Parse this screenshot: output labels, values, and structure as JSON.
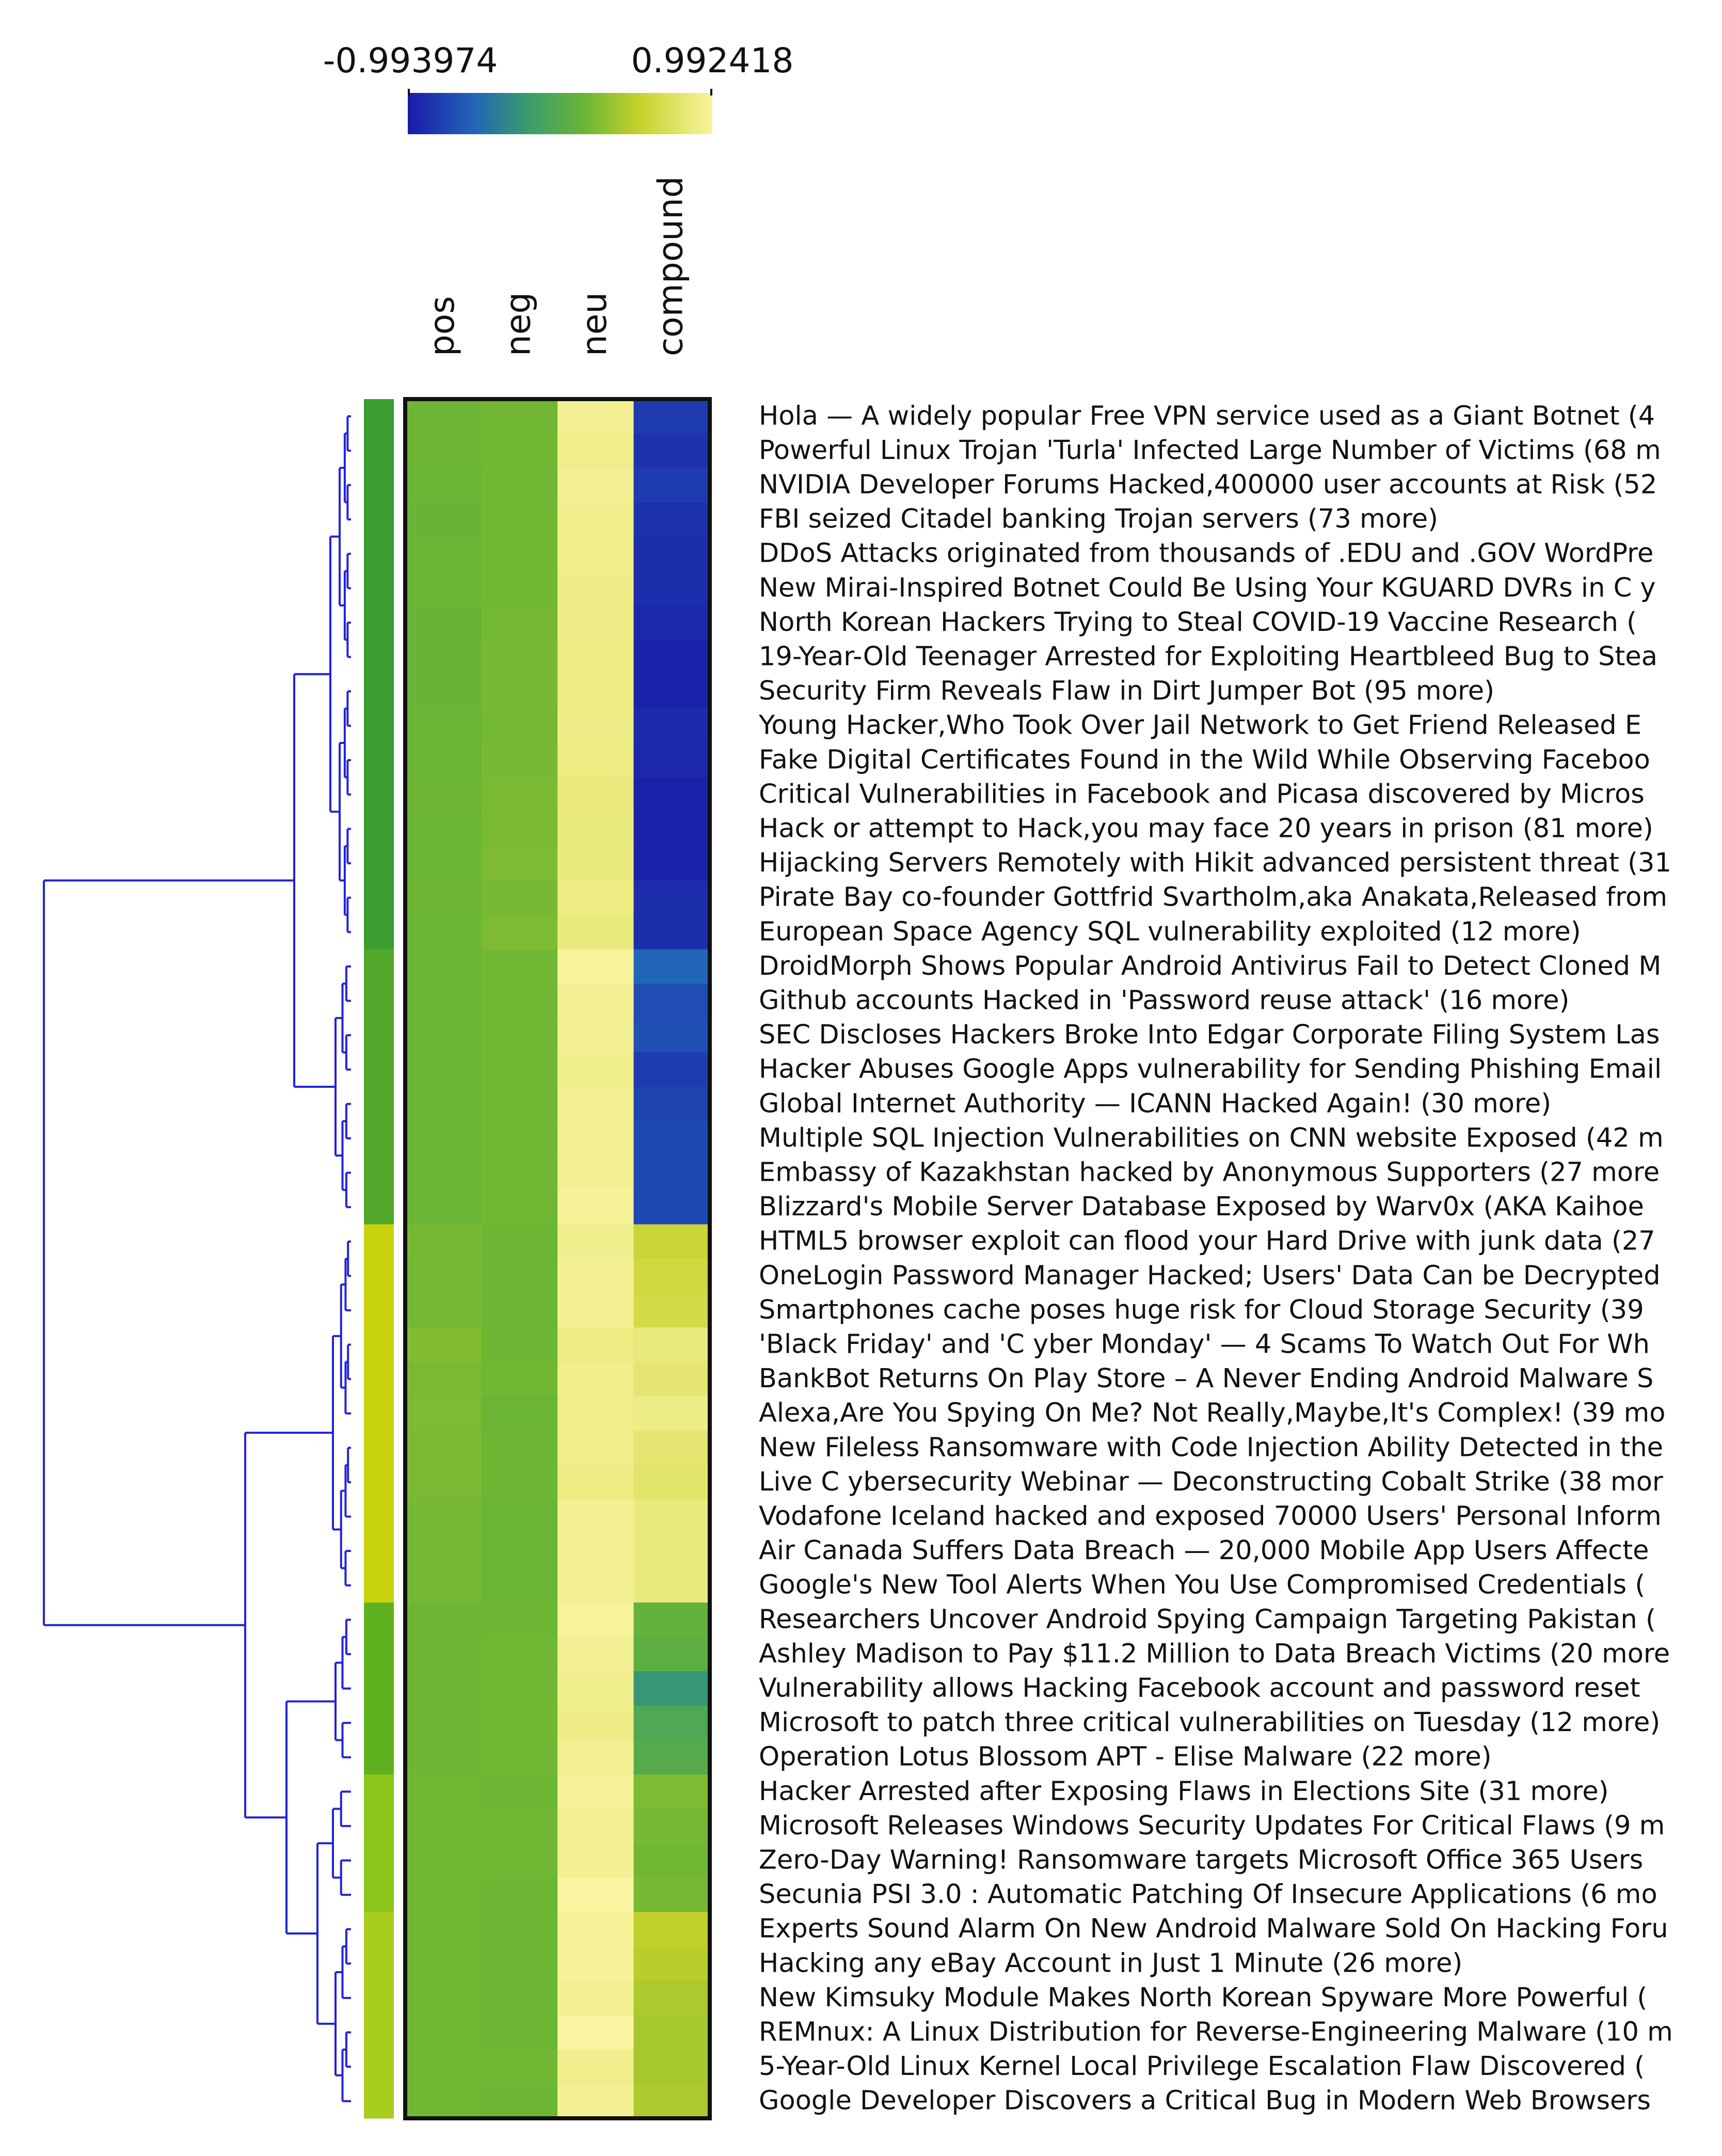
{
  "chart_data": {
    "type": "heatmap",
    "title": "",
    "colorbar": {
      "min_label": "-0.993974",
      "max_label": "0.992418",
      "min": -0.993974,
      "max": 0.992418,
      "colormap": "blue-green-yellow",
      "colors": [
        "#1a1aa8",
        "#2e8bb0",
        "#3fa34d",
        "#9fcc2a",
        "#e8e45a",
        "#fafbd2"
      ]
    },
    "columns": [
      "pos",
      "neg",
      "neu",
      "compound"
    ],
    "dendrogram_color": "#2222dd",
    "cluster_colors": [
      "#3c9d30",
      "#52a82a",
      "#c8d20d",
      "#5fb21f",
      "#8cc51a",
      "#a8cc1c"
    ],
    "rows": [
      {
        "label": "Hola — A widely popular Free VPN service used as a Giant Botnet (4",
        "cluster": 0,
        "values": [
          0.15,
          0.2,
          0.85,
          -0.8
        ]
      },
      {
        "label": "Powerful Linux Trojan 'Turla' Infected Large Number of Victims (68 m",
        "cluster": 0,
        "values": [
          0.15,
          0.2,
          0.8,
          -0.85
        ]
      },
      {
        "label": "NVIDIA Developer Forums Hacked,400000 user accounts at Risk (52",
        "cluster": 0,
        "values": [
          0.12,
          0.2,
          0.85,
          -0.8
        ]
      },
      {
        "label": "FBI seized Citadel banking Trojan servers (73 more)",
        "cluster": 0,
        "values": [
          0.1,
          0.2,
          0.8,
          -0.85
        ]
      },
      {
        "label": "DDoS Attacks originated from thousands of .EDU and .GOV WordPre",
        "cluster": 0,
        "values": [
          0.12,
          0.2,
          0.8,
          -0.88
        ]
      },
      {
        "label": "New Mirai-Inspired Botnet Could Be Using Your KGUARD DVRs in C y",
        "cluster": 0,
        "values": [
          0.12,
          0.2,
          0.78,
          -0.88
        ]
      },
      {
        "label": "North Korean Hackers Trying to Steal COVID-19 Vaccine Research (",
        "cluster": 0,
        "values": [
          0.1,
          0.22,
          0.78,
          -0.92
        ]
      },
      {
        "label": "19-Year-Old Teenager Arrested for Exploiting Heartbleed Bug to Stea",
        "cluster": 0,
        "values": [
          0.1,
          0.25,
          0.75,
          -0.95
        ]
      },
      {
        "label": "Security Firm Reveals Flaw in Dirt Jumper Bot (95 more)",
        "cluster": 0,
        "values": [
          0.1,
          0.25,
          0.75,
          -0.95
        ]
      },
      {
        "label": "Young Hacker,Who Took Over Jail Network to Get Friend Released E",
        "cluster": 0,
        "values": [
          0.12,
          0.22,
          0.78,
          -0.9
        ]
      },
      {
        "label": "Fake Digital Certificates Found in the Wild While Observing Faceboo",
        "cluster": 0,
        "values": [
          0.12,
          0.25,
          0.75,
          -0.92
        ]
      },
      {
        "label": "Critical Vulnerabilities in Facebook and Picasa discovered by Micros",
        "cluster": 0,
        "values": [
          0.15,
          0.28,
          0.7,
          -0.95
        ]
      },
      {
        "label": "Hack or attempt to Hack,you may face 20 years in prison (81 more)",
        "cluster": 0,
        "values": [
          0.12,
          0.28,
          0.72,
          -0.96
        ]
      },
      {
        "label": "Hijacking Servers Remotely with Hikit advanced persistent threat (31",
        "cluster": 0,
        "values": [
          0.12,
          0.3,
          0.72,
          -0.95
        ]
      },
      {
        "label": "Pirate Bay co-founder Gottfrid Svartholm,aka Anakata,Released from",
        "cluster": 0,
        "values": [
          0.15,
          0.25,
          0.75,
          -0.88
        ]
      },
      {
        "label": "European Space Agency SQL vulnerability exploited (12 more)",
        "cluster": 0,
        "values": [
          0.12,
          0.3,
          0.72,
          -0.88
        ]
      },
      {
        "label": "DroidMorph Shows Popular Android Antivirus Fail to Detect Cloned M",
        "cluster": 1,
        "values": [
          0.12,
          0.18,
          0.9,
          -0.55
        ]
      },
      {
        "label": "Github accounts Hacked in 'Password reuse attack' (16 more)",
        "cluster": 1,
        "values": [
          0.12,
          0.2,
          0.85,
          -0.7
        ]
      },
      {
        "label": "SEC Discloses Hackers Broke Into Edgar Corporate Filing System Las",
        "cluster": 1,
        "values": [
          0.12,
          0.2,
          0.85,
          -0.68
        ]
      },
      {
        "label": "Hacker Abuses Google Apps vulnerability for Sending Phishing Email",
        "cluster": 1,
        "values": [
          0.12,
          0.2,
          0.82,
          -0.8
        ]
      },
      {
        "label": "Global Internet Authority — ICANN Hacked Again! (30 more)",
        "cluster": 1,
        "values": [
          0.12,
          0.2,
          0.85,
          -0.75
        ]
      },
      {
        "label": "Multiple SQL Injection Vulnerabilities on CNN website Exposed (42 m",
        "cluster": 1,
        "values": [
          0.12,
          0.2,
          0.85,
          -0.72
        ]
      },
      {
        "label": "Embassy of Kazakhstan hacked by Anonymous Supporters (27 more",
        "cluster": 1,
        "values": [
          0.12,
          0.2,
          0.85,
          -0.72
        ]
      },
      {
        "label": "Blizzard's Mobile Server Database Exposed by Warv0x (AKA Kaihoe",
        "cluster": 1,
        "values": [
          0.12,
          0.18,
          0.88,
          -0.72
        ]
      },
      {
        "label": "HTML5 browser exploit can flood your Hard Drive with junk data (27",
        "cluster": 2,
        "values": [
          0.25,
          0.15,
          0.82,
          0.55
        ]
      },
      {
        "label": "OneLogin Password Manager Hacked; Users' Data Can be Decrypted",
        "cluster": 2,
        "values": [
          0.22,
          0.15,
          0.85,
          0.6
        ]
      },
      {
        "label": "Smartphones cache poses huge risk for Cloud Storage Security (39",
        "cluster": 2,
        "values": [
          0.22,
          0.15,
          0.85,
          0.62
        ]
      },
      {
        "label": "'Black Friday' and 'C yber Monday' — 4 Scams To Watch Out For Wh",
        "cluster": 2,
        "values": [
          0.35,
          0.15,
          0.75,
          0.95
        ]
      },
      {
        "label": "BankBot Returns On Play Store – A Never Ending Android Malware S",
        "cluster": 2,
        "values": [
          0.28,
          0.18,
          0.8,
          0.9
        ]
      },
      {
        "label": "Alexa,Are You Spying On Me? Not Really,Maybe,It's Complex! (39 mo",
        "cluster": 2,
        "values": [
          0.3,
          0.12,
          0.8,
          0.99
        ]
      },
      {
        "label": "New Fileless Ransomware with Code Injection Ability Detected in the",
        "cluster": 2,
        "values": [
          0.28,
          0.15,
          0.8,
          0.8
        ]
      },
      {
        "label": "Live C ybersecurity Webinar — Deconstructing Cobalt Strike (38 mor",
        "cluster": 2,
        "values": [
          0.28,
          0.15,
          0.75,
          0.78
        ]
      },
      {
        "label": "Vodafone Iceland hacked and exposed 70000 Users' Personal Inform",
        "cluster": 2,
        "values": [
          0.22,
          0.12,
          0.85,
          0.85
        ]
      },
      {
        "label": "Air Canada Suffers Data Breach — 20,000 Mobile App Users Affecte",
        "cluster": 2,
        "values": [
          0.22,
          0.12,
          0.85,
          0.95
        ]
      },
      {
        "label": "Google's New Tool Alerts When You Use Compromised Credentials (",
        "cluster": 2,
        "values": [
          0.22,
          0.12,
          0.85,
          0.95
        ]
      },
      {
        "label": "Researchers Uncover Android Spying Campaign Targeting Pakistan (",
        "cluster": 3,
        "values": [
          0.15,
          0.15,
          0.9,
          0.1
        ]
      },
      {
        "label": "Ashley Madison to Pay $11.2 Million to Data Breach Victims (20 more",
        "cluster": 3,
        "values": [
          0.15,
          0.18,
          0.85,
          0.05
        ]
      },
      {
        "label": "Vulnerability allows Hacking Facebook account and password reset",
        "cluster": 3,
        "values": [
          0.15,
          0.18,
          0.82,
          -0.25
        ]
      },
      {
        "label": "Microsoft to patch three critical vulnerabilities on Tuesday (12 more)",
        "cluster": 3,
        "values": [
          0.15,
          0.2,
          0.78,
          -0.05
        ]
      },
      {
        "label": "Operation Lotus Blossom APT - Elise Malware (22 more)",
        "cluster": 3,
        "values": [
          0.15,
          0.18,
          0.85,
          0.0
        ]
      },
      {
        "label": "Hacker Arrested after Exposing Flaws in Elections Site (31 more)",
        "cluster": 4,
        "values": [
          0.18,
          0.15,
          0.88,
          0.22
        ]
      },
      {
        "label": "Microsoft Releases Windows Security Updates For Critical Flaws (9 m",
        "cluster": 4,
        "values": [
          0.18,
          0.18,
          0.85,
          0.2
        ]
      },
      {
        "label": "Zero-Day Warning! Ransomware targets Microsoft Office 365 Users",
        "cluster": 4,
        "values": [
          0.18,
          0.18,
          0.85,
          0.18
        ]
      },
      {
        "label": "Secunia PSI 3.0 : Automatic Patching Of Insecure Applications (6 mo",
        "cluster": 4,
        "values": [
          0.18,
          0.15,
          0.95,
          0.2
        ]
      },
      {
        "label": "Experts Sound Alarm On New Android Malware Sold On Hacking Foru",
        "cluster": 5,
        "values": [
          0.2,
          0.15,
          0.88,
          0.48
        ]
      },
      {
        "label": "Hacking any eBay Account in Just 1 Minute (26 more)",
        "cluster": 5,
        "values": [
          0.2,
          0.15,
          0.88,
          0.45
        ]
      },
      {
        "label": "New Kimsuky Module Makes North Korean Spyware More Powerful (",
        "cluster": 5,
        "values": [
          0.2,
          0.15,
          0.85,
          0.4
        ]
      },
      {
        "label": "REMnux: A Linux Distribution for Reverse-Engineering Malware (10 m",
        "cluster": 5,
        "values": [
          0.18,
          0.15,
          0.95,
          0.38
        ]
      },
      {
        "label": "5-Year-Old Linux Kernel Local Privilege Escalation Flaw Discovered (",
        "cluster": 5,
        "values": [
          0.2,
          0.18,
          0.8,
          0.38
        ]
      },
      {
        "label": "Google Developer Discovers a Critical Bug in Modern Web Browsers",
        "cluster": 5,
        "values": [
          0.2,
          0.15,
          0.85,
          0.4
        ]
      }
    ]
  }
}
